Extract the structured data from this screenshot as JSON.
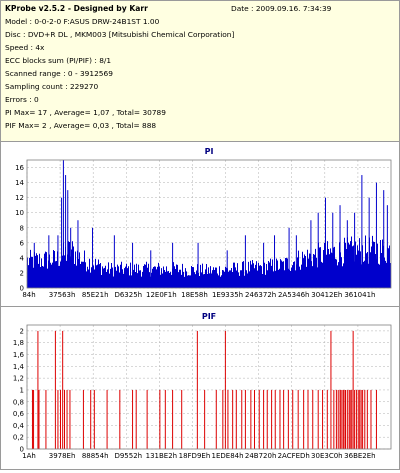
{
  "info": {
    "title": "KProbe v2.5.2 - Designed by Karr",
    "date": "Date : 2009.09.16. 7:34:39",
    "lines": [
      "Model : 0-0-2-0 F:ASUS    DRW-24B1ST      1.00",
      "Disc : DVD+R DL , MKM003 [Mitsubishi Chemical Corporation]",
      "Speed : 4x",
      "ECC blocks sum (PI/PIF) : 8/1",
      "Scanned range : 0 - 3912569",
      "Sampling count : 229270",
      "Errors : 0",
      "PI Max= 17 , Average= 1,07 , Total= 30789",
      "PIF Max= 2 , Average= 0,03 , Total= 888"
    ]
  },
  "chart_data": [
    {
      "type": "bar",
      "title": "PI",
      "ylim": [
        0,
        17
      ],
      "yticks": [
        0,
        2,
        4,
        6,
        8,
        10,
        12,
        14,
        16
      ],
      "ytick_labels": [
        "0",
        "2",
        "4",
        "6",
        "8",
        "10",
        "12",
        "14",
        "16"
      ],
      "xtick_labels": [
        "84h",
        "37563h",
        "85E21h",
        "D6325h",
        "12E0F1h",
        "18E58h",
        "1E9335h",
        "246372h",
        "2A5346h",
        "30412Eh",
        "361041h"
      ],
      "grid": true,
      "bar_color": "#0000cc",
      "baseline_profile": [
        [
          0.0,
          3.6
        ],
        [
          0.08,
          3.8
        ],
        [
          0.12,
          5.0
        ],
        [
          0.15,
          3.8
        ],
        [
          0.22,
          2.5
        ],
        [
          0.3,
          2.5
        ],
        [
          0.4,
          2.5
        ],
        [
          0.5,
          2.3
        ],
        [
          0.6,
          2.6
        ],
        [
          0.7,
          3.0
        ],
        [
          0.76,
          4.0
        ],
        [
          0.82,
          4.5
        ],
        [
          0.9,
          5.0
        ],
        [
          1.0,
          5.0
        ]
      ],
      "peaks": [
        [
          0.1,
          17
        ],
        [
          0.106,
          15
        ],
        [
          0.095,
          12
        ],
        [
          0.112,
          13
        ],
        [
          0.12,
          8
        ],
        [
          0.085,
          7
        ],
        [
          0.02,
          6
        ],
        [
          0.06,
          7
        ],
        [
          0.14,
          9
        ],
        [
          0.18,
          8
        ],
        [
          0.24,
          7
        ],
        [
          0.29,
          6
        ],
        [
          0.34,
          5
        ],
        [
          0.4,
          6
        ],
        [
          0.47,
          6
        ],
        [
          0.55,
          5
        ],
        [
          0.6,
          7
        ],
        [
          0.65,
          6
        ],
        [
          0.68,
          7
        ],
        [
          0.72,
          8
        ],
        [
          0.74,
          7
        ],
        [
          0.78,
          9
        ],
        [
          0.8,
          10
        ],
        [
          0.82,
          12
        ],
        [
          0.84,
          10
        ],
        [
          0.86,
          11
        ],
        [
          0.88,
          9
        ],
        [
          0.9,
          10
        ],
        [
          0.92,
          15
        ],
        [
          0.94,
          12
        ],
        [
          0.96,
          14
        ],
        [
          0.98,
          13
        ],
        [
          0.99,
          11
        ]
      ]
    },
    {
      "type": "bar",
      "title": "PIF",
      "ylim": [
        0,
        2.1
      ],
      "yticks": [
        0,
        0.2,
        0.4,
        0.6,
        0.8,
        1,
        1.2,
        1.4,
        1.6,
        1.8,
        2
      ],
      "ytick_labels": [
        "0",
        "0,2",
        "0,4",
        "0,6",
        "0,8",
        "1",
        "1,2",
        "1,4",
        "1,6",
        "1,8",
        "2"
      ],
      "xtick_labels": [
        "1Ah",
        "3978Eh",
        "88854h",
        "D9552h",
        "131BE2h",
        "18FD9Eh",
        "1EDE84h",
        "24B720h",
        "2ACFEDh",
        "30E3C0h",
        "36BE2Eh"
      ],
      "grid": true,
      "bar_color": "#dd0000",
      "bars": [
        [
          0.015,
          1
        ],
        [
          0.018,
          1
        ],
        [
          0.03,
          2
        ],
        [
          0.033,
          1
        ],
        [
          0.052,
          1
        ],
        [
          0.078,
          2
        ],
        [
          0.085,
          1
        ],
        [
          0.092,
          1
        ],
        [
          0.098,
          2
        ],
        [
          0.103,
          1
        ],
        [
          0.11,
          1
        ],
        [
          0.118,
          1
        ],
        [
          0.155,
          1
        ],
        [
          0.175,
          1
        ],
        [
          0.185,
          1
        ],
        [
          0.22,
          1
        ],
        [
          0.255,
          1
        ],
        [
          0.29,
          1
        ],
        [
          0.3,
          1
        ],
        [
          0.33,
          1
        ],
        [
          0.365,
          1
        ],
        [
          0.38,
          1
        ],
        [
          0.4,
          1
        ],
        [
          0.425,
          1
        ],
        [
          0.468,
          2
        ],
        [
          0.488,
          1
        ],
        [
          0.52,
          1
        ],
        [
          0.538,
          1
        ],
        [
          0.545,
          2
        ],
        [
          0.552,
          1
        ],
        [
          0.565,
          1
        ],
        [
          0.575,
          1
        ],
        [
          0.59,
          1
        ],
        [
          0.6,
          1
        ],
        [
          0.615,
          1
        ],
        [
          0.625,
          1
        ],
        [
          0.638,
          1
        ],
        [
          0.65,
          1
        ],
        [
          0.66,
          1
        ],
        [
          0.672,
          1
        ],
        [
          0.682,
          1
        ],
        [
          0.695,
          1
        ],
        [
          0.705,
          1
        ],
        [
          0.718,
          1
        ],
        [
          0.73,
          1
        ],
        [
          0.745,
          1
        ],
        [
          0.76,
          1
        ],
        [
          0.772,
          1
        ],
        [
          0.785,
          1
        ],
        [
          0.8,
          1
        ],
        [
          0.812,
          1
        ],
        [
          0.825,
          1
        ],
        [
          0.835,
          2
        ],
        [
          0.843,
          1
        ],
        [
          0.85,
          1
        ],
        [
          0.855,
          1
        ],
        [
          0.86,
          1
        ],
        [
          0.863,
          1
        ],
        [
          0.868,
          1
        ],
        [
          0.871,
          1
        ],
        [
          0.875,
          1
        ],
        [
          0.88,
          1
        ],
        [
          0.885,
          1
        ],
        [
          0.888,
          1
        ],
        [
          0.892,
          1
        ],
        [
          0.896,
          2
        ],
        [
          0.9,
          1
        ],
        [
          0.905,
          1
        ],
        [
          0.91,
          1
        ],
        [
          0.914,
          1
        ],
        [
          0.918,
          1
        ],
        [
          0.922,
          1
        ],
        [
          0.928,
          1
        ],
        [
          0.935,
          1
        ],
        [
          0.945,
          1
        ],
        [
          0.96,
          1
        ]
      ]
    }
  ]
}
